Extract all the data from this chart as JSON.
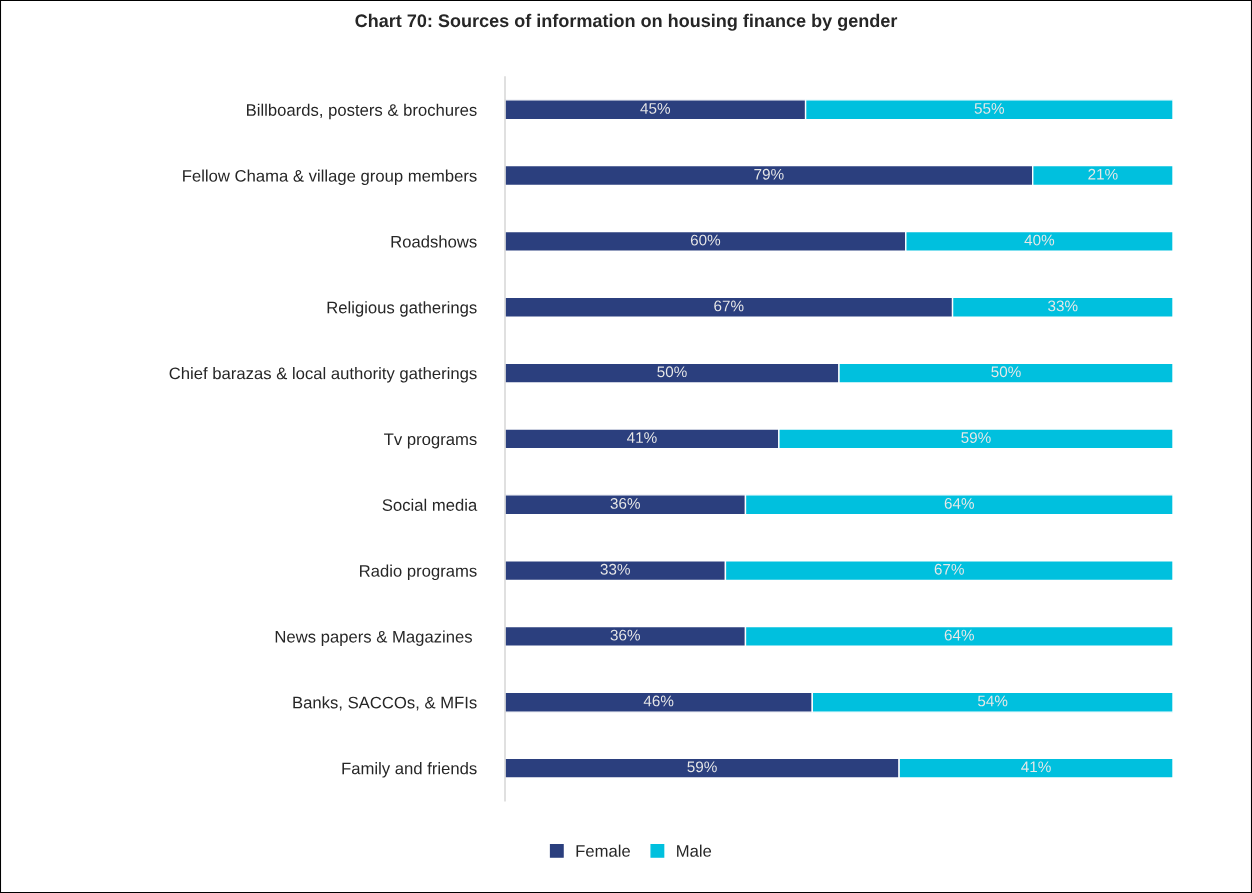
{
  "chart_data": {
    "type": "bar",
    "orientation": "horizontal",
    "stacked": true,
    "title": "Chart 70: Sources of information on housing finance by gender",
    "categories": [
      "Billboards, posters & brochures",
      "Fellow Chama & village group members",
      "Roadshows",
      "Religious gatherings",
      "Chief barazas & local authority gatherings",
      "Tv programs",
      "Social media",
      "Radio programs",
      "News papers & Magazines ",
      "Banks, SACCOs, & MFIs",
      "Family and friends"
    ],
    "series": [
      {
        "name": "Female",
        "color": "#2b3f7e",
        "values": [
          45,
          79,
          60,
          67,
          50,
          41,
          36,
          33,
          36,
          46,
          59
        ],
        "value_labels": [
          "45%",
          "79%",
          "60%",
          "67%",
          "50%",
          "41%",
          "36%",
          "33%",
          "36%",
          "46%",
          "59%"
        ]
      },
      {
        "name": "Male",
        "color": "#00c0de",
        "values": [
          55,
          21,
          40,
          33,
          50,
          59,
          64,
          67,
          64,
          54,
          41
        ],
        "value_labels": [
          "55%",
          "21%",
          "40%",
          "33%",
          "50%",
          "59%",
          "64%",
          "67%",
          "64%",
          "54%",
          "41%"
        ]
      }
    ],
    "xlim": [
      0,
      100
    ],
    "tick_labels": "y",
    "legend": "bottom"
  }
}
